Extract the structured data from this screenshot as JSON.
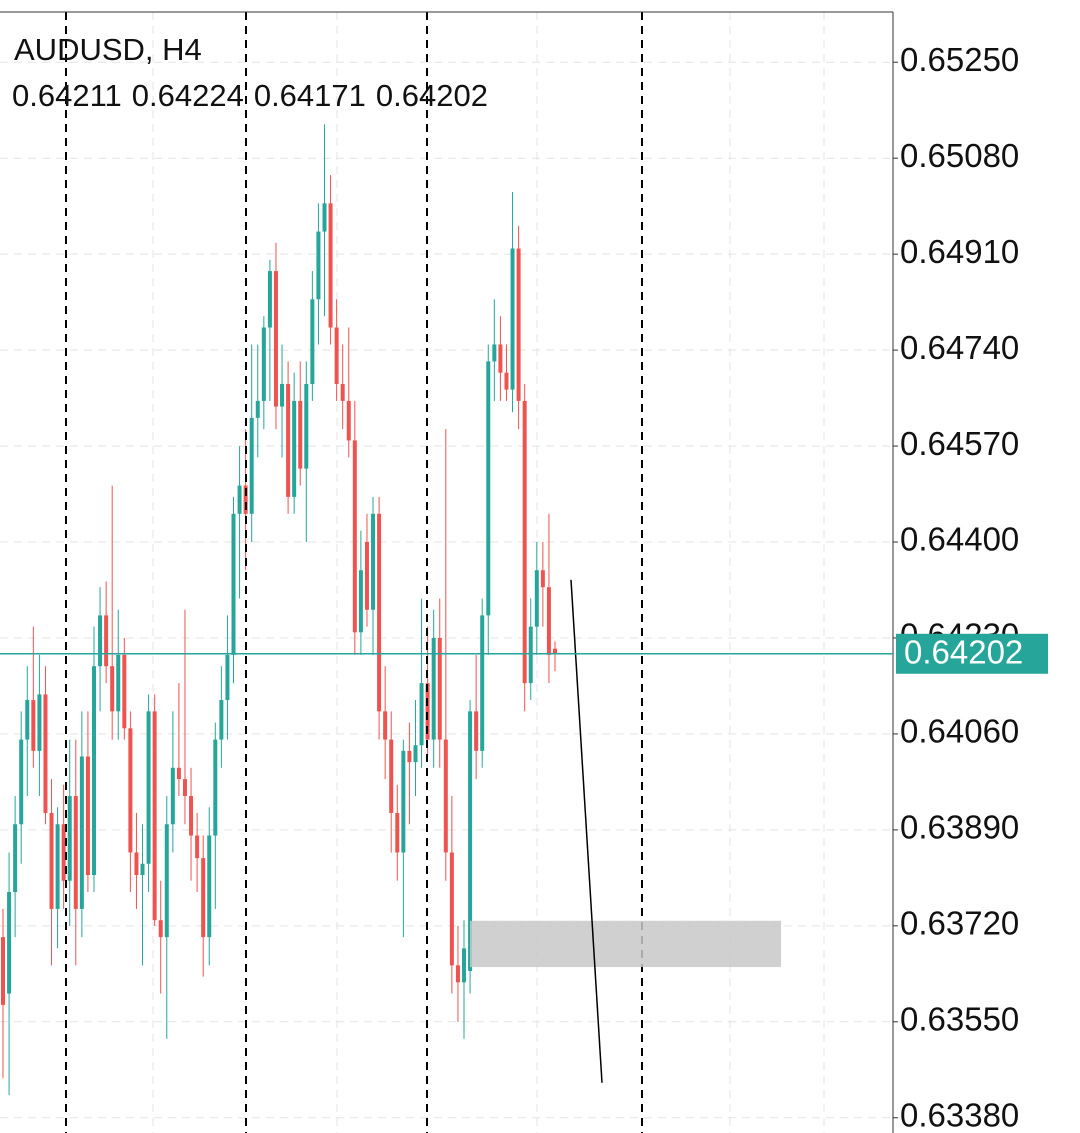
{
  "chart_data": {
    "type": "candlestick",
    "title": "AUDUSD, H4",
    "ohlc_readout": [
      0.64211,
      0.64224,
      0.64171,
      0.64202
    ],
    "last_price": 0.64202,
    "up_color": "#26a69a",
    "down_color": "#ef5350",
    "ylim": [
      0.63353,
      0.65339
    ],
    "yticks": [
      {
        "value": 0.6525,
        "label": "0.65250"
      },
      {
        "value": 0.6508,
        "label": "0.65080"
      },
      {
        "value": 0.6491,
        "label": "0.64910"
      },
      {
        "value": 0.6474,
        "label": "0.64740"
      },
      {
        "value": 0.6457,
        "label": "0.64570"
      },
      {
        "value": 0.644,
        "label": "0.64400"
      },
      {
        "value": 0.6423,
        "label": "0.64230"
      },
      {
        "value": 0.6406,
        "label": "0.64060"
      },
      {
        "value": 0.6389,
        "label": "0.63890"
      },
      {
        "value": 0.6372,
        "label": "0.63720"
      },
      {
        "value": 0.6355,
        "label": "0.63550"
      },
      {
        "value": 0.6338,
        "label": "0.63380"
      }
    ],
    "grid": true,
    "zone": {
      "top": 0.63729,
      "bottom": 0.63647
    },
    "trendline": {
      "start": 0.64333,
      "end": 0.63442
    },
    "candles": [
      [
        0.637,
        0.6375,
        0.6345,
        0.6358
      ],
      [
        0.636,
        0.6385,
        0.6342,
        0.6378
      ],
      [
        0.6378,
        0.6395,
        0.637,
        0.639
      ],
      [
        0.639,
        0.641,
        0.6383,
        0.6405
      ],
      [
        0.6405,
        0.6418,
        0.6395,
        0.6412
      ],
      [
        0.6412,
        0.6425,
        0.64,
        0.6403
      ],
      [
        0.6403,
        0.642,
        0.6395,
        0.6413
      ],
      [
        0.6413,
        0.6418,
        0.639,
        0.6392
      ],
      [
        0.6392,
        0.6398,
        0.6365,
        0.6375
      ],
      [
        0.6375,
        0.6393,
        0.6368,
        0.639
      ],
      [
        0.639,
        0.6397,
        0.6375,
        0.638
      ],
      [
        0.638,
        0.6405,
        0.6372,
        0.6395
      ],
      [
        0.6395,
        0.6405,
        0.6365,
        0.6375
      ],
      [
        0.6375,
        0.641,
        0.637,
        0.6402
      ],
      [
        0.6402,
        0.641,
        0.6378,
        0.6381
      ],
      [
        0.6381,
        0.6425,
        0.6378,
        0.6418
      ],
      [
        0.6418,
        0.6432,
        0.641,
        0.6427
      ],
      [
        0.6427,
        0.6433,
        0.6415,
        0.6418
      ],
      [
        0.6418,
        0.645,
        0.6405,
        0.641
      ],
      [
        0.641,
        0.6428,
        0.6405,
        0.642
      ],
      [
        0.642,
        0.6423,
        0.6405,
        0.6407
      ],
      [
        0.6407,
        0.641,
        0.6378,
        0.6385
      ],
      [
        0.6385,
        0.6392,
        0.6375,
        0.6381
      ],
      [
        0.6381,
        0.639,
        0.6365,
        0.6383
      ],
      [
        0.6383,
        0.6413,
        0.6378,
        0.641
      ],
      [
        0.641,
        0.6413,
        0.6372,
        0.6373
      ],
      [
        0.6373,
        0.638,
        0.636,
        0.637
      ],
      [
        0.637,
        0.6395,
        0.6352,
        0.639
      ],
      [
        0.639,
        0.641,
        0.6385,
        0.64
      ],
      [
        0.64,
        0.6415,
        0.6395,
        0.6398
      ],
      [
        0.6398,
        0.6428,
        0.639,
        0.6395
      ],
      [
        0.6395,
        0.64,
        0.638,
        0.6388
      ],
      [
        0.6388,
        0.6392,
        0.6378,
        0.6384
      ],
      [
        0.6384,
        0.6388,
        0.6363,
        0.637
      ],
      [
        0.637,
        0.6393,
        0.6365,
        0.6388
      ],
      [
        0.6388,
        0.6408,
        0.6375,
        0.6405
      ],
      [
        0.6405,
        0.6418,
        0.64,
        0.6412
      ],
      [
        0.6412,
        0.6427,
        0.6405,
        0.642
      ],
      [
        0.642,
        0.6448,
        0.6415,
        0.6445
      ],
      [
        0.6445,
        0.6457,
        0.643,
        0.645
      ],
      [
        0.645,
        0.646,
        0.6435,
        0.6445
      ],
      [
        0.6445,
        0.6475,
        0.644,
        0.6462
      ],
      [
        0.6462,
        0.6475,
        0.6455,
        0.6465
      ],
      [
        0.6465,
        0.648,
        0.646,
        0.6478
      ],
      [
        0.6478,
        0.649,
        0.6465,
        0.6488
      ],
      [
        0.6488,
        0.6493,
        0.646,
        0.6464
      ],
      [
        0.6464,
        0.6475,
        0.6455,
        0.6468
      ],
      [
        0.6468,
        0.6472,
        0.6445,
        0.6448
      ],
      [
        0.6448,
        0.647,
        0.6445,
        0.6465
      ],
      [
        0.6465,
        0.6472,
        0.645,
        0.6453
      ],
      [
        0.6453,
        0.6472,
        0.644,
        0.6468
      ],
      [
        0.6468,
        0.6488,
        0.6465,
        0.6483
      ],
      [
        0.6483,
        0.65,
        0.6475,
        0.6495
      ],
      [
        0.6495,
        0.6514,
        0.648,
        0.65
      ],
      [
        0.65,
        0.6505,
        0.6475,
        0.6478
      ],
      [
        0.6478,
        0.6483,
        0.6465,
        0.6468
      ],
      [
        0.6468,
        0.6475,
        0.646,
        0.6465
      ],
      [
        0.6465,
        0.6478,
        0.6455,
        0.6458
      ],
      [
        0.6458,
        0.6465,
        0.642,
        0.6424
      ],
      [
        0.6424,
        0.6442,
        0.642,
        0.6435
      ],
      [
        0.644,
        0.6445,
        0.6425,
        0.6428
      ],
      [
        0.6428,
        0.6448,
        0.642,
        0.6445
      ],
      [
        0.6445,
        0.6448,
        0.6405,
        0.641
      ],
      [
        0.641,
        0.6418,
        0.6398,
        0.6405
      ],
      [
        0.6405,
        0.641,
        0.6385,
        0.6392
      ],
      [
        0.6392,
        0.6397,
        0.638,
        0.6385
      ],
      [
        0.6385,
        0.6405,
        0.637,
        0.6403
      ],
      [
        0.6403,
        0.6408,
        0.639,
        0.6401
      ],
      [
        0.6401,
        0.6412,
        0.6395,
        0.6404
      ],
      [
        0.6404,
        0.643,
        0.64,
        0.6415
      ],
      [
        0.6415,
        0.6425,
        0.6402,
        0.6405
      ],
      [
        0.6405,
        0.6428,
        0.64,
        0.6423
      ],
      [
        0.6423,
        0.643,
        0.64,
        0.6405
      ],
      [
        0.6405,
        0.646,
        0.638,
        0.6385
      ],
      [
        0.6385,
        0.6395,
        0.636,
        0.6365
      ],
      [
        0.6365,
        0.6372,
        0.6355,
        0.6362
      ],
      [
        0.6362,
        0.6373,
        0.6352,
        0.6368
      ],
      [
        0.6364,
        0.6412,
        0.636,
        0.641
      ],
      [
        0.641,
        0.642,
        0.6398,
        0.6403
      ],
      [
        0.6403,
        0.643,
        0.64,
        0.6427
      ],
      [
        0.6427,
        0.6475,
        0.642,
        0.6472
      ],
      [
        0.6472,
        0.6483,
        0.6465,
        0.6475
      ],
      [
        0.6475,
        0.648,
        0.6465,
        0.647
      ],
      [
        0.647,
        0.6475,
        0.6465,
        0.6467
      ],
      [
        0.6467,
        0.6502,
        0.6463,
        0.6492
      ],
      [
        0.6492,
        0.6496,
        0.646,
        0.6465
      ],
      [
        0.6465,
        0.6468,
        0.641,
        0.6415
      ],
      [
        0.6415,
        0.643,
        0.6412,
        0.6425
      ],
      [
        0.6425,
        0.644,
        0.642,
        0.6435
      ],
      [
        0.6435,
        0.644,
        0.6425,
        0.6432
      ],
      [
        0.6432,
        0.6445,
        0.6415,
        0.642
      ],
      [
        0.64211,
        0.64224,
        0.64171,
        0.64202
      ]
    ]
  }
}
